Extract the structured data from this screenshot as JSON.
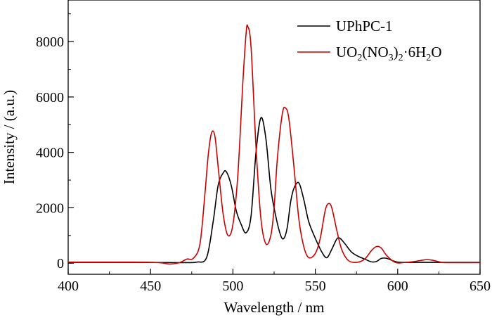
{
  "chart_data": {
    "type": "line",
    "xlabel": "Wavelength / nm",
    "ylabel": "Intensity / (a.u.)",
    "xlim": [
      400,
      650
    ],
    "ylim": [
      -400,
      9500
    ],
    "xticks": [
      "400",
      "450",
      "500",
      "550",
      "600",
      "650"
    ],
    "yticks": [
      "0",
      "2000",
      "4000",
      "6000",
      "8000"
    ],
    "grid": false,
    "legend_position": "top-right",
    "series": [
      {
        "name": "UPhPC-1",
        "color": "#000000",
        "legend_html": "UPhPC-1",
        "x": [
          400,
          440,
          460,
          470,
          478,
          484,
          488,
          491,
          494,
          496,
          499,
          502,
          505,
          508,
          511,
          514,
          517,
          520,
          523,
          526,
          529,
          531,
          533,
          535,
          537,
          540,
          543,
          546,
          550,
          554,
          557,
          560,
          563,
          565,
          568,
          572,
          576,
          580,
          584,
          587,
          590,
          593,
          597,
          600,
          605,
          610,
          620,
          650
        ],
        "y": [
          30,
          30,
          25,
          20,
          40,
          200,
          1500,
          2800,
          3250,
          3300,
          2800,
          1900,
          1400,
          1100,
          1700,
          4000,
          5250,
          4500,
          2700,
          1700,
          1000,
          900,
          1300,
          2200,
          2700,
          2900,
          2300,
          1500,
          900,
          400,
          200,
          500,
          870,
          900,
          700,
          400,
          250,
          150,
          50,
          60,
          170,
          180,
          90,
          40,
          30,
          30,
          30,
          30
        ]
      },
      {
        "name": "UO2(NO3)2·6H2O",
        "color": "#cc0000",
        "legend_html": "UO<tspan dy='5' font-size='14'>2</tspan><tspan dy='-5'>(NO</tspan><tspan dy='5' font-size='14'>3</tspan><tspan dy='-5'>)</tspan><tspan dy='5' font-size='14'>2</tspan><tspan dy='-5'>·6H</tspan><tspan dy='5' font-size='14'>2</tspan><tspan dy='-5'>O</tspan>",
        "x": [
          400,
          440,
          455,
          462,
          468,
          472,
          476,
          480,
          483,
          485,
          487,
          489,
          491,
          494,
          497,
          500,
          503,
          506,
          508,
          509,
          511,
          514,
          517,
          520,
          523,
          525,
          527,
          530,
          532,
          534,
          537,
          540,
          543,
          546,
          550,
          553,
          556,
          558,
          560,
          563,
          566,
          570,
          575,
          580,
          584,
          587,
          590,
          593,
          597,
          600,
          603,
          610,
          615,
          618,
          621,
          626,
          630,
          650
        ],
        "y": [
          40,
          40,
          20,
          -30,
          30,
          150,
          180,
          700,
          2500,
          3900,
          4700,
          4600,
          3500,
          1800,
          1000,
          1400,
          3200,
          6500,
          8300,
          8550,
          7800,
          4200,
          1600,
          700,
          1000,
          2000,
          3800,
          5400,
          5600,
          5200,
          3500,
          1600,
          600,
          200,
          350,
          900,
          1900,
          2150,
          2000,
          1200,
          500,
          100,
          30,
          150,
          450,
          600,
          550,
          300,
          80,
          10,
          20,
          60,
          110,
          130,
          110,
          40,
          20,
          20
        ]
      }
    ]
  }
}
